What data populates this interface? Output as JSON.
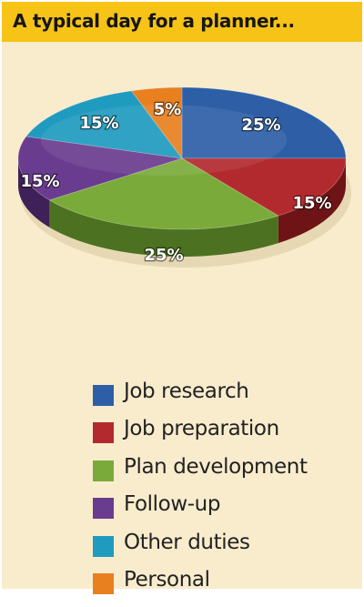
{
  "header": {
    "title": "A typical day for a planner..."
  },
  "chart_data": {
    "type": "pie",
    "title": "A typical day for a planner...",
    "slices": [
      {
        "label": "Job research",
        "value": 25,
        "display": "25%",
        "color": "#2e5fa6",
        "dark": "#1d3f72"
      },
      {
        "label": "Job preparation",
        "value": 15,
        "display": "15%",
        "color": "#b32a2e",
        "dark": "#6e1416"
      },
      {
        "label": "Plan development",
        "value": 25,
        "display": "25%",
        "color": "#7aab3a",
        "dark": "#4c7121"
      },
      {
        "label": "Follow-up",
        "value": 15,
        "display": "15%",
        "color": "#6a3c8f",
        "dark": "#3f2058"
      },
      {
        "label": "Other duties",
        "value": 15,
        "display": "15%",
        "color": "#1f9bbf",
        "dark": "#12637c"
      },
      {
        "label": "Personal",
        "value": 5,
        "display": "5%",
        "color": "#e8801f",
        "dark": "#a35512"
      }
    ],
    "legend_position": "bottom"
  },
  "legend": {
    "items": [
      {
        "label": "Job research",
        "color": "#2e5fa6"
      },
      {
        "label": "Job preparation",
        "color": "#b32a2e"
      },
      {
        "label": "Plan development",
        "color": "#7aab3a"
      },
      {
        "label": "Follow-up",
        "color": "#6a3c8f"
      },
      {
        "label": "Other duties",
        "color": "#1f9bbf"
      },
      {
        "label": "Personal",
        "color": "#e8801f"
      }
    ]
  }
}
